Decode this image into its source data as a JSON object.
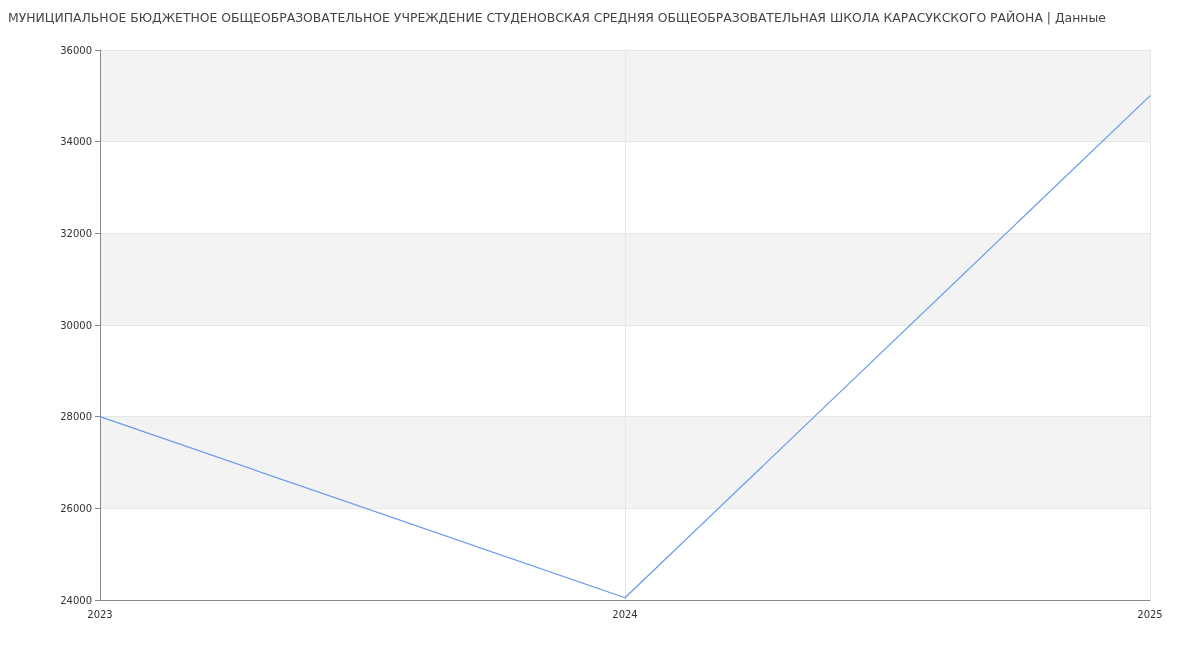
{
  "chart_data": {
    "type": "line",
    "title": "МУНИЦИПАЛЬНОЕ БЮДЖЕТНОЕ ОБЩЕОБРАЗОВАТЕЛЬНОЕ УЧРЕЖДЕНИЕ СТУДЕНОВСКАЯ СРЕДНЯЯ ОБЩЕОБРАЗОВАТЕЛЬНАЯ ШКОЛА КАРАСУКСКОГО РАЙОНА | Данные",
    "categories": [
      "2023",
      "2024",
      "2025"
    ],
    "series": [
      {
        "color": "#6699ee",
        "values": [
          28000,
          24050,
          35000
        ]
      }
    ],
    "ylim": [
      24000,
      36000
    ],
    "yticks": [
      24000,
      26000,
      28000,
      30000,
      32000,
      34000,
      36000
    ],
    "grid": true,
    "marker": "none",
    "line_style": "solid"
  }
}
